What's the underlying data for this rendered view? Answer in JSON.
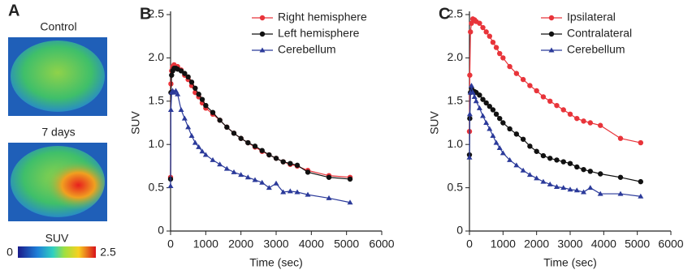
{
  "panel_a": {
    "label": "A",
    "images": [
      {
        "label": "Control"
      },
      {
        "label": "7 days"
      }
    ],
    "colorbar": {
      "label": "SUV",
      "min": 0,
      "max": 2.5
    }
  },
  "chart_data": [
    {
      "type": "line",
      "label": "B",
      "xlabel": "Time (sec)",
      "ylabel": "SUV",
      "x": [
        0,
        10,
        30,
        60,
        100,
        150,
        200,
        300,
        400,
        500,
        600,
        700,
        800,
        900,
        1000,
        1200,
        1400,
        1600,
        1800,
        2000,
        2200,
        2400,
        2600,
        2800,
        3000,
        3200,
        3400,
        3600,
        3900,
        4500,
        5100
      ],
      "series": [
        {
          "name": "Right hemisphere",
          "color": "#e8343a",
          "marker": "circle",
          "values": [
            0.62,
            1.7,
            1.85,
            1.9,
            1.92,
            1.88,
            1.9,
            1.86,
            1.8,
            1.75,
            1.68,
            1.6,
            1.55,
            1.48,
            1.42,
            1.35,
            1.28,
            1.2,
            1.13,
            1.07,
            1.02,
            0.97,
            0.92,
            0.88,
            0.84,
            0.8,
            0.77,
            0.75,
            0.7,
            0.64,
            0.62
          ]
        },
        {
          "name": "Left hemisphere",
          "color": "#111111",
          "marker": "circle",
          "values": [
            0.6,
            1.6,
            1.8,
            1.85,
            1.88,
            1.88,
            1.87,
            1.85,
            1.82,
            1.78,
            1.72,
            1.65,
            1.58,
            1.52,
            1.45,
            1.37,
            1.28,
            1.2,
            1.13,
            1.07,
            1.02,
            0.98,
            0.93,
            0.88,
            0.84,
            0.8,
            0.78,
            0.76,
            0.68,
            0.62,
            0.6
          ]
        },
        {
          "name": "Cerebellum",
          "color": "#2b3a9a",
          "marker": "triangle",
          "values": [
            0.52,
            1.4,
            1.6,
            1.62,
            1.6,
            1.62,
            1.58,
            1.4,
            1.3,
            1.2,
            1.1,
            1.02,
            0.97,
            0.92,
            0.88,
            0.82,
            0.77,
            0.72,
            0.68,
            0.65,
            0.62,
            0.59,
            0.56,
            0.5,
            0.55,
            0.45,
            0.46,
            0.45,
            0.42,
            0.38,
            0.33
          ]
        }
      ],
      "xlim": [
        0,
        6000
      ],
      "xticks": [
        0,
        1000,
        2000,
        3000,
        4000,
        5000,
        6000
      ],
      "ylim": [
        0,
        2.5
      ],
      "yticks": [
        0,
        0.5,
        {
          "value": 1,
          "label": "1.0"
        },
        1.5,
        {
          "value": 2,
          "label": "2.0"
        },
        2.5
      ],
      "legend": "upper right"
    },
    {
      "type": "line",
      "label": "C",
      "xlabel": "Time (sec)",
      "ylabel": "SUV",
      "x": [
        0,
        10,
        30,
        60,
        100,
        150,
        200,
        300,
        400,
        500,
        600,
        700,
        800,
        900,
        1000,
        1200,
        1400,
        1600,
        1800,
        2000,
        2200,
        2400,
        2600,
        2800,
        3000,
        3200,
        3400,
        3600,
        3900,
        4500,
        5100
      ],
      "series": [
        {
          "name": "Ipsilateral",
          "color": "#e8343a",
          "marker": "circle",
          "values": [
            1.15,
            1.8,
            2.3,
            2.4,
            2.45,
            2.44,
            2.42,
            2.4,
            2.35,
            2.3,
            2.25,
            2.18,
            2.12,
            2.05,
            2.0,
            1.9,
            1.82,
            1.75,
            1.68,
            1.62,
            1.55,
            1.5,
            1.45,
            1.4,
            1.35,
            1.3,
            1.27,
            1.25,
            1.22,
            1.07,
            1.02
          ]
        },
        {
          "name": "Contralateral",
          "color": "#111111",
          "marker": "circle",
          "values": [
            0.88,
            1.3,
            1.6,
            1.65,
            1.62,
            1.61,
            1.6,
            1.57,
            1.52,
            1.48,
            1.44,
            1.4,
            1.35,
            1.3,
            1.25,
            1.18,
            1.12,
            1.06,
            0.98,
            0.92,
            0.87,
            0.84,
            0.82,
            0.8,
            0.78,
            0.74,
            0.71,
            0.69,
            0.66,
            0.62,
            0.57
          ]
        },
        {
          "name": "Cerebellum",
          "color": "#2b3a9a",
          "marker": "triangle",
          "values": [
            0.85,
            1.35,
            1.6,
            1.68,
            1.6,
            1.55,
            1.5,
            1.42,
            1.33,
            1.25,
            1.18,
            1.1,
            1.02,
            0.96,
            0.9,
            0.82,
            0.76,
            0.7,
            0.65,
            0.61,
            0.57,
            0.54,
            0.51,
            0.5,
            0.48,
            0.47,
            0.45,
            0.5,
            0.43,
            0.43,
            0.4
          ]
        }
      ],
      "xlim": [
        0,
        6000
      ],
      "xticks": [
        0,
        1000,
        2000,
        3000,
        4000,
        5000,
        6000
      ],
      "ylim": [
        0,
        2.5
      ],
      "yticks": [
        0,
        0.5,
        {
          "value": 1,
          "label": "1.0"
        },
        1.5,
        {
          "value": 2,
          "label": "2.0"
        },
        2.5
      ],
      "legend": "upper right"
    }
  ]
}
